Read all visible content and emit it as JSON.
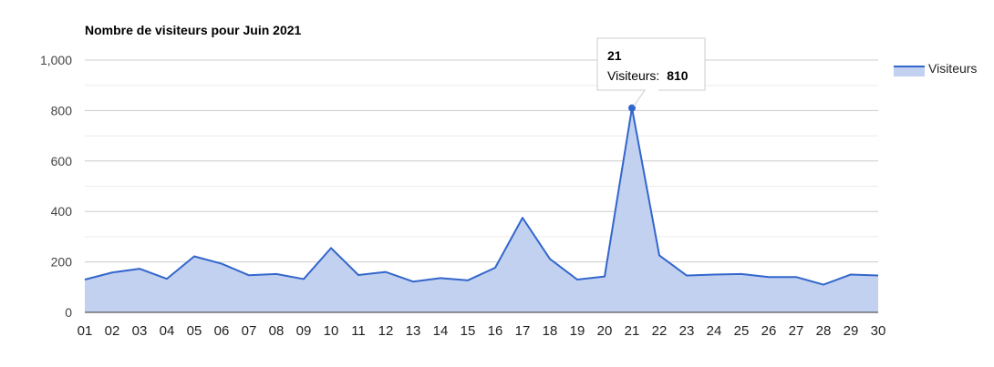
{
  "chart_data": {
    "type": "area",
    "title": "Nombre de visiteurs pour Juin 2021",
    "xlabel": "",
    "ylabel": "",
    "ylim": [
      0,
      1000
    ],
    "yticks": [
      0,
      200,
      400,
      600,
      800,
      1000
    ],
    "ytick_labels": [
      "0",
      "200",
      "400",
      "600",
      "800",
      "1,000"
    ],
    "grid": true,
    "legend_position": "right",
    "categories": [
      "01",
      "02",
      "03",
      "04",
      "05",
      "06",
      "07",
      "08",
      "09",
      "10",
      "11",
      "12",
      "13",
      "14",
      "15",
      "16",
      "17",
      "18",
      "19",
      "20",
      "21",
      "22",
      "23",
      "24",
      "25",
      "26",
      "27",
      "28",
      "29",
      "30"
    ],
    "series": [
      {
        "name": "Visiteurs",
        "values": [
          130,
          158,
          173,
          133,
          222,
          193,
          147,
          152,
          132,
          255,
          148,
          160,
          122,
          136,
          127,
          177,
          375,
          212,
          130,
          142,
          810,
          226,
          146,
          150,
          152,
          140,
          140,
          110,
          150,
          146
        ]
      }
    ],
    "colors": {
      "line": "#3366cc",
      "fill": "#c2d1f0"
    },
    "tooltip": {
      "category": "21",
      "series_label": "Visiteurs:",
      "value": "810"
    }
  }
}
